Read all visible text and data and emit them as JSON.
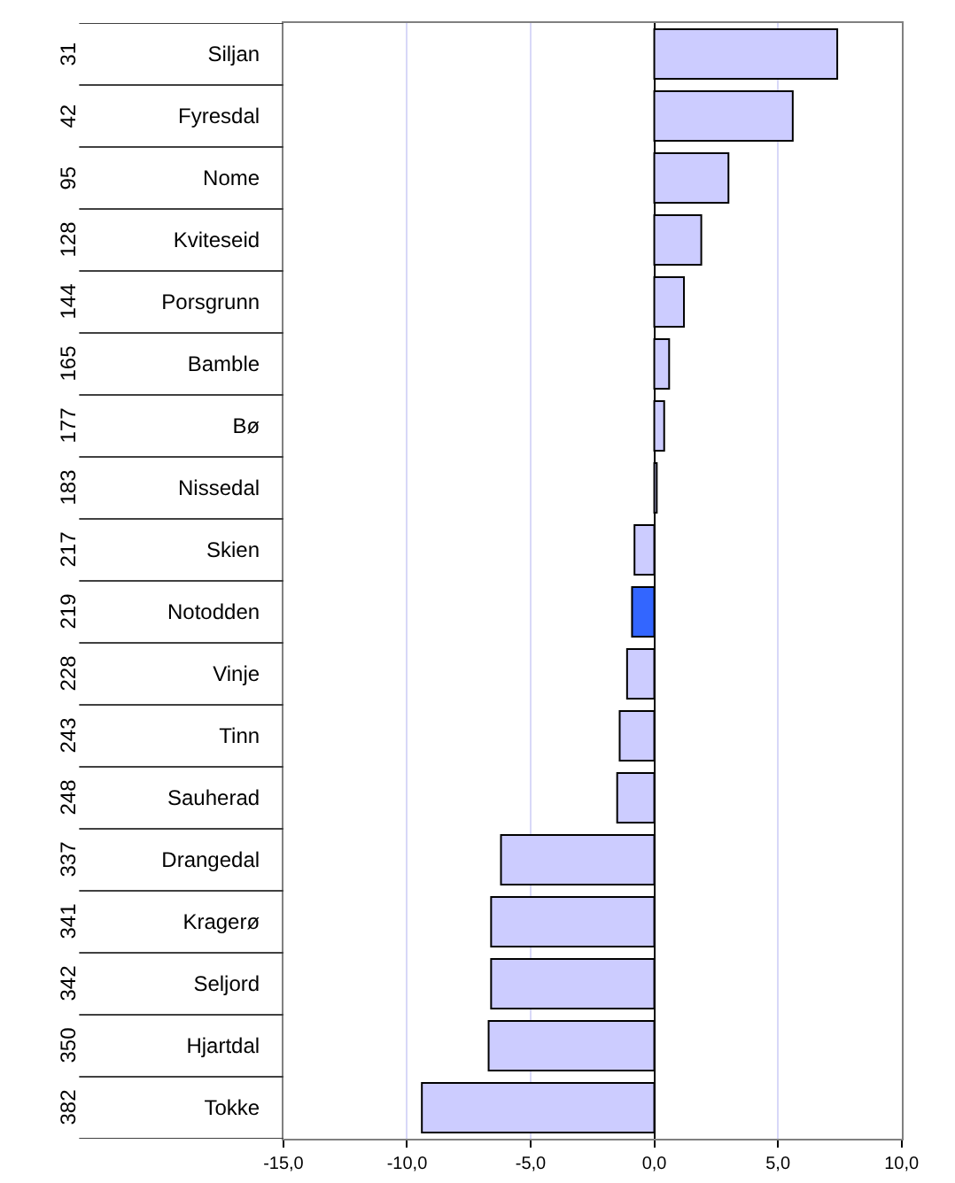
{
  "chart_data": {
    "type": "bar",
    "orientation": "horizontal",
    "categories": [
      "Siljan",
      "Fyresdal",
      "Nome",
      "Kviteseid",
      "Porsgrunn",
      "Bamble",
      "Bø",
      "Nissedal",
      "Skien",
      "Notodden",
      "Vinje",
      "Tinn",
      "Sauherad",
      "Drangedal",
      "Kragerø",
      "Seljord",
      "Hjartdal",
      "Tokke"
    ],
    "values": [
      7.4,
      5.6,
      3.0,
      1.9,
      1.2,
      0.6,
      0.4,
      0.1,
      -0.8,
      -0.9,
      -1.1,
      -1.4,
      -1.5,
      -6.2,
      -6.6,
      -6.6,
      -6.7,
      -9.4
    ],
    "colors": [
      "#ccccff",
      "#ccccff",
      "#ccccff",
      "#ccccff",
      "#ccccff",
      "#ccccff",
      "#ccccff",
      "#ccccff",
      "#ccccff",
      "#3366ff",
      "#ccccff",
      "#ccccff",
      "#ccccff",
      "#ccccff",
      "#ccccff",
      "#ccccff",
      "#ccccff",
      "#ccccff"
    ],
    "annotations": [
      "31",
      "42",
      "95",
      "128",
      "144",
      "165",
      "177",
      "183",
      "217",
      "219",
      "228",
      "243",
      "248",
      "337",
      "341",
      "342",
      "350",
      "382"
    ],
    "xlim": [
      -15,
      10
    ],
    "xticks": [
      {
        "value": -15,
        "label": "-15,0"
      },
      {
        "value": -10,
        "label": "-10,0"
      },
      {
        "value": -5,
        "label": "-5,0"
      },
      {
        "value": 0,
        "label": "0,0"
      },
      {
        "value": 5,
        "label": "5,0"
      },
      {
        "value": 10,
        "label": "10,0"
      }
    ],
    "grid": "x"
  }
}
